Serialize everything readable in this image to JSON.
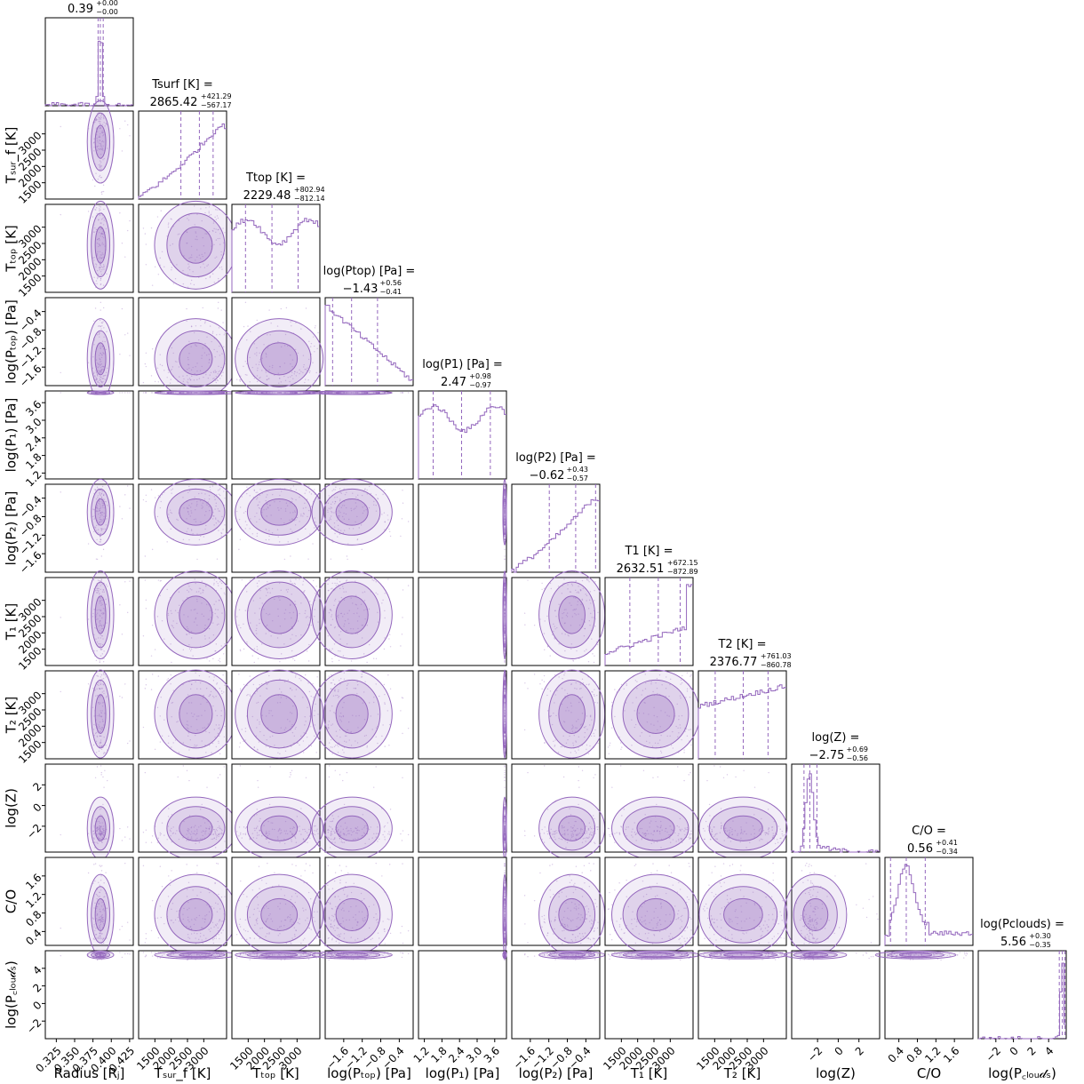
{
  "chart_data": {
    "type": "corner",
    "color": "#9467bd",
    "parameters": [
      {
        "key": "radius",
        "axis_label": "Radius [Rⱼ]",
        "title": "0.39",
        "title_plus": "+0.00",
        "title_minus": "−0.00",
        "title_prefix": "",
        "range": [
          0.31,
          0.43
        ],
        "ticks": [
          "0.325",
          "0.350",
          "0.375",
          "0.400",
          "0.425"
        ],
        "tick_values": [
          0.325,
          0.35,
          0.375,
          0.4,
          0.425
        ],
        "median": 0.385,
        "q16": 0.382,
        "q84": 0.389,
        "hist_shape": "spike"
      },
      {
        "key": "t_surf",
        "axis_label": "Tₛᵤᵣ_f [K]",
        "title": "2865.42",
        "title_plus": "+421.29",
        "title_minus": "−567.17",
        "title_prefix": "Tsurf [K] =",
        "range": [
          1000,
          3700
        ],
        "ticks": [
          "1500",
          "2000",
          "2500",
          "3000"
        ],
        "tick_values": [
          1500,
          2000,
          2500,
          3000
        ],
        "median": 2865.42,
        "q16": 2298.25,
        "q84": 3286.71,
        "hist_shape": "rising"
      },
      {
        "key": "t_top",
        "axis_label": "Tₜₒₚ [K]",
        "title": "2229.48",
        "title_plus": "+802.94",
        "title_minus": "−812.14",
        "title_prefix": "Ttop [K] =",
        "range": [
          1000,
          3700
        ],
        "ticks": [
          "1500",
          "2000",
          "2500",
          "3000"
        ],
        "tick_values": [
          1500,
          2000,
          2500,
          3000
        ],
        "median": 2229.48,
        "q16": 1417.34,
        "q84": 3032.42,
        "hist_shape": "flat"
      },
      {
        "key": "log_p_top",
        "axis_label": "log(Pₜₒₚ) [Pa]",
        "title": "−1.43",
        "title_plus": "+0.56",
        "title_minus": "−0.41",
        "title_prefix": "log(Ptop) [Pa] =",
        "range": [
          -2.0,
          -0.1
        ],
        "ticks": [
          "−1.6",
          "−1.2",
          "−0.8",
          "−0.4"
        ],
        "tick_values": [
          -1.6,
          -1.2,
          -0.8,
          -0.4
        ],
        "median": -1.43,
        "q16": -1.84,
        "q84": -0.87,
        "hist_shape": "falling"
      },
      {
        "key": "log_p1",
        "axis_label": "log(P₁) [Pa]",
        "title": "2.47",
        "title_plus": "+0.98",
        "title_minus": "−0.97",
        "title_prefix": "log(P1) [Pa] =",
        "range": [
          1.0,
          4.0
        ],
        "ticks": [
          "1.2",
          "1.8",
          "2.4",
          "3.0",
          "3.6"
        ],
        "tick_values": [
          1.2,
          1.8,
          2.4,
          3.0,
          3.6
        ],
        "median": 2.47,
        "q16": 1.5,
        "q84": 3.45,
        "hist_shape": "flat"
      },
      {
        "key": "log_p2",
        "axis_label": "log(P₂) [Pa]",
        "title": "−0.62",
        "title_plus": "+0.43",
        "title_minus": "−0.57",
        "title_prefix": "log(P2) [Pa] =",
        "range": [
          -2.0,
          -0.1
        ],
        "ticks": [
          "−1.6",
          "−1.2",
          "−0.8",
          "−0.4"
        ],
        "tick_values": [
          -1.6,
          -1.2,
          -0.8,
          -0.4
        ],
        "median": -0.62,
        "q16": -1.19,
        "q84": -0.19,
        "hist_shape": "rising"
      },
      {
        "key": "t1",
        "axis_label": "T₁ [K]",
        "title": "2632.51",
        "title_plus": "+672.15",
        "title_minus": "−872.89",
        "title_prefix": "T1 [K] =",
        "range": [
          1000,
          3700
        ],
        "ticks": [
          "1500",
          "2000",
          "2500",
          "3000"
        ],
        "tick_values": [
          1500,
          2000,
          2500,
          3000
        ],
        "median": 2632.51,
        "q16": 1759.62,
        "q84": 3304.66,
        "hist_shape": "rising_end"
      },
      {
        "key": "t2",
        "axis_label": "T₂ [K]",
        "title": "2376.77",
        "title_plus": "+761.03",
        "title_minus": "−860.78",
        "title_prefix": "T2 [K] =",
        "range": [
          1000,
          3700
        ],
        "ticks": [
          "1500",
          "2000",
          "2500",
          "3000"
        ],
        "tick_values": [
          1500,
          2000,
          2500,
          3000
        ],
        "median": 2376.77,
        "q16": 1515.99,
        "q84": 3137.8,
        "hist_shape": "flat_rising"
      },
      {
        "key": "log_z",
        "axis_label": "log(Z)",
        "title": "−2.75",
        "title_plus": "+0.69",
        "title_minus": "−0.56",
        "title_prefix": "log(Z) =",
        "range": [
          -4.5,
          4.0
        ],
        "ticks": [
          "−2",
          "0",
          "2"
        ],
        "tick_values": [
          -2,
          0,
          2
        ],
        "median": -2.75,
        "q16": -3.31,
        "q84": -2.06,
        "hist_shape": "peak_left"
      },
      {
        "key": "c_o",
        "axis_label": "C/O",
        "title": "0.56",
        "title_plus": "+0.41",
        "title_minus": "−0.34",
        "title_prefix": "C/O =",
        "range": [
          0.1,
          2.0
        ],
        "ticks": [
          "0.4",
          "0.8",
          "1.2",
          "1.6"
        ],
        "tick_values": [
          0.4,
          0.8,
          1.2,
          1.6
        ],
        "median": 0.56,
        "q16": 0.22,
        "q84": 0.97,
        "hist_shape": "co"
      },
      {
        "key": "log_p_clouds",
        "axis_label": "log(P꜀ₗₒᵤ𝒹ₛ)",
        "title": "5.56",
        "title_plus": "+0.30",
        "title_minus": "−0.35",
        "title_prefix": "log(Pclouds) =",
        "range": [
          -4.0,
          6.0
        ],
        "ticks": [
          "−2",
          "0",
          "2",
          "4"
        ],
        "tick_values": [
          -2,
          0,
          2,
          4
        ],
        "median": 5.56,
        "q16": 5.21,
        "q84": 5.86,
        "hist_shape": "spike_right"
      }
    ],
    "y_axis_labels": [
      "",
      "Tₛᵤᵣ_f [K]",
      "Tₜₒₚ [K]",
      "log(Pₜₒₚ) [Pa]",
      "log(P₁) [Pa]",
      "log(P₂) [Pa]",
      "T₁ [K]",
      "T₂ [K]",
      "log(Z)",
      "C/O",
      "log(P꜀ₗₒᵤ𝒹ₛ)"
    ],
    "y_ticks": [
      [],
      [
        "1500",
        "2000",
        "2500",
        "3000"
      ],
      [
        "1500",
        "2000",
        "2500",
        "3000"
      ],
      [
        "−1.6",
        "−1.2",
        "−0.8",
        "−0.4"
      ],
      [
        "1.2",
        "1.8",
        "2.4",
        "3.0",
        "3.6"
      ],
      [
        "−1.6",
        "−1.2",
        "−0.8",
        "−0.4"
      ],
      [
        "1500",
        "2000",
        "2500",
        "3000"
      ],
      [
        "1500",
        "2000",
        "2500",
        "3000"
      ],
      [
        "−2",
        "0",
        "2"
      ],
      [
        "0.4",
        "0.8",
        "1.2",
        "1.6"
      ],
      [
        "−2",
        "0",
        "2",
        "4"
      ]
    ],
    "x_axis_labels_rendered": [
      "Radius [R",
      "T",
      "T",
      "log(P",
      "log(P",
      "log(P",
      "T",
      "T",
      "log(Z)",
      "C/O",
      "log(P"
    ],
    "titles_rendered": [
      {
        "name": "",
        "value": "0.39",
        "sup": "+0.00",
        "sub": "−0.00"
      },
      {
        "name": "T_surf [K] =",
        "value": "2865.42",
        "sup": "+421.29",
        "sub": "−567.17"
      },
      {
        "name": "T_top [K] =",
        "value": "2229.48",
        "sup": "+802.94",
        "sub": "−812.14"
      },
      {
        "name": "log(P_top) [Pa] =",
        "value": "−1.43",
        "sup": "+0.56",
        "sub": "−0.41"
      },
      {
        "name": "log(P_1) [Pa] =",
        "value": "2.47",
        "sup": "+0.98",
        "sub": "−0.97"
      },
      {
        "name": "log(P_2) [Pa] =",
        "value": "−0.62",
        "sup": "+0.43",
        "sub": "−0.57"
      },
      {
        "name": "T_1 [K] =",
        "value": "2632.51",
        "sup": "+672.15",
        "sub": "−872.89"
      },
      {
        "name": "T_2 [K] =",
        "value": "2376.77",
        "sup": "+761.03",
        "sub": "−860.78"
      },
      {
        "name": "log(Z) =",
        "value": "−2.75",
        "sup": "+0.69",
        "sub": "−0.56"
      },
      {
        "name": "C/O =",
        "value": "0.56",
        "sup": "+0.41",
        "sub": "−0.34"
      },
      {
        "name": "log(P_clouds) =",
        "value": "5.56",
        "sup": "+0.30",
        "sub": "−0.35"
      }
    ]
  }
}
